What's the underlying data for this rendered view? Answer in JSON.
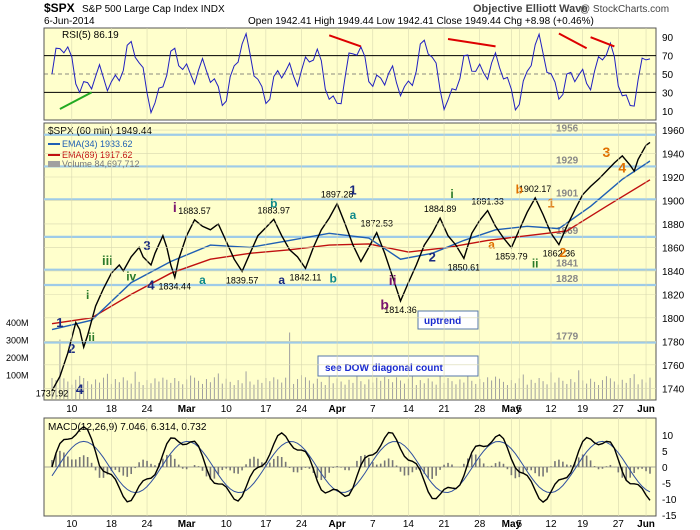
{
  "header": {
    "symbol": "$SPX",
    "name": "S&P 500 Large Cap Index INDX",
    "date": "6-Jun-2014",
    "author": "Objective Elliott Wave",
    "copyright": "@ StockCharts.com",
    "ohlc": "Open 1942.41  High 1949.44  Low 1942.41  Close 1949.44  Chg +8.98 (+0.46%)"
  },
  "colors": {
    "panel_bg": "#ffffcc",
    "price": "#000000",
    "ema34": "#1f5fb4",
    "ema89": "#c01010",
    "volume": "#a0a0a0",
    "rsi": "#2020c0",
    "level_line": "#9ecbe8",
    "wave_navy": "#1a2a80",
    "wave_teal": "#0e8a8a",
    "wave_purple": "#7a1470",
    "wave_orange": "#e07000",
    "wave_green": "#2a7a2a",
    "trend_red": "#dd0000",
    "trend_green": "#22aa22",
    "ann_box_text": "#1a2ad0"
  },
  "legend": {
    "price": "$SPX (60 min) 1949.44",
    "ema34": "EMA(34) 1933.62",
    "ema89": "EMA(89) 1917.62",
    "volume": "Volume 84,697,712"
  },
  "rsi_panel": {
    "label": "RSI(5) 86.19",
    "ticks": [
      90,
      70,
      50,
      30,
      10
    ],
    "bands": [
      70,
      30
    ]
  },
  "macd_panel": {
    "label": "MACD(12,26,9) 7.046, 6.314, 0.732",
    "ticks": [
      10,
      5,
      0,
      -5,
      -10,
      -15
    ]
  },
  "annotations": {
    "uptrend": "uptrend",
    "dow_note": "see DOW diagonal count"
  },
  "chart_data": {
    "type": "line",
    "x_tick_labels": [
      "10",
      "18",
      "24",
      "Mar",
      "10",
      "17",
      "24",
      "Apr",
      "7",
      "14",
      "21",
      "28",
      "May",
      "5",
      "12",
      "19",
      "27",
      "Jun"
    ],
    "y_ticks": [
      1740,
      1760,
      1780,
      1800,
      1820,
      1840,
      1860,
      1880,
      1900,
      1920,
      1940,
      1960
    ],
    "ylim": [
      1730,
      1966
    ],
    "volume_ticks": [
      "400M",
      "300M",
      "200M",
      "100M"
    ],
    "levels": [
      1956,
      1929,
      1901,
      1869,
      1841,
      1828,
      1779
    ],
    "price_path": [
      [
        0,
        1737.92
      ],
      [
        2,
        1750
      ],
      [
        4,
        1770
      ],
      [
        6,
        1796
      ],
      [
        7,
        1790
      ],
      [
        8,
        1775
      ],
      [
        9,
        1785
      ],
      [
        11,
        1810
      ],
      [
        13,
        1825
      ],
      [
        15,
        1838
      ],
      [
        17,
        1845
      ],
      [
        18,
        1840
      ],
      [
        20,
        1852
      ],
      [
        22,
        1860
      ],
      [
        23,
        1852
      ],
      [
        25,
        1845
      ],
      [
        26,
        1855
      ],
      [
        28,
        1870
      ],
      [
        29,
        1860
      ],
      [
        30,
        1845
      ],
      [
        31,
        1834.44
      ],
      [
        32,
        1850
      ],
      [
        34,
        1870
      ],
      [
        36,
        1883.57
      ],
      [
        38,
        1878
      ],
      [
        40,
        1875
      ],
      [
        42,
        1880
      ],
      [
        44,
        1865
      ],
      [
        46,
        1850
      ],
      [
        48,
        1839.57
      ],
      [
        50,
        1855
      ],
      [
        52,
        1870
      ],
      [
        54,
        1877
      ],
      [
        56,
        1883.97
      ],
      [
        58,
        1870
      ],
      [
        60,
        1858
      ],
      [
        62,
        1852
      ],
      [
        64,
        1842.11
      ],
      [
        66,
        1860
      ],
      [
        68,
        1875
      ],
      [
        70,
        1885
      ],
      [
        72,
        1897.28
      ],
      [
        74,
        1880
      ],
      [
        76,
        1862
      ],
      [
        78,
        1848
      ],
      [
        80,
        1860
      ],
      [
        82,
        1872.53
      ],
      [
        84,
        1855
      ],
      [
        86,
        1835
      ],
      [
        88,
        1814.36
      ],
      [
        90,
        1830
      ],
      [
        92,
        1845
      ],
      [
        94,
        1862
      ],
      [
        96,
        1872
      ],
      [
        98,
        1884.89
      ],
      [
        100,
        1870
      ],
      [
        102,
        1862
      ],
      [
        104,
        1850.61
      ],
      [
        106,
        1872
      ],
      [
        108,
        1883
      ],
      [
        110,
        1891.33
      ],
      [
        112,
        1878
      ],
      [
        114,
        1868
      ],
      [
        116,
        1859.79
      ],
      [
        118,
        1875
      ],
      [
        120,
        1890
      ],
      [
        122,
        1902.17
      ],
      [
        124,
        1888
      ],
      [
        126,
        1872
      ],
      [
        128,
        1862.36
      ],
      [
        130,
        1878
      ],
      [
        132,
        1892
      ],
      [
        134,
        1905
      ],
      [
        136,
        1912
      ],
      [
        138,
        1918
      ],
      [
        140,
        1925
      ],
      [
        142,
        1932
      ],
      [
        144,
        1938
      ],
      [
        146,
        1930
      ],
      [
        147,
        1925
      ],
      [
        148,
        1935
      ],
      [
        150,
        1947
      ],
      [
        151,
        1949.44
      ]
    ],
    "ema34_path": [
      [
        0,
        1790
      ],
      [
        10,
        1798
      ],
      [
        20,
        1830
      ],
      [
        30,
        1848
      ],
      [
        40,
        1862
      ],
      [
        50,
        1860
      ],
      [
        60,
        1866
      ],
      [
        70,
        1872
      ],
      [
        80,
        1868
      ],
      [
        88,
        1850
      ],
      [
        96,
        1855
      ],
      [
        104,
        1866
      ],
      [
        112,
        1875
      ],
      [
        120,
        1878
      ],
      [
        128,
        1876
      ],
      [
        136,
        1895
      ],
      [
        144,
        1918
      ],
      [
        151,
        1933.62
      ]
    ],
    "ema89_path": [
      [
        0,
        1795
      ],
      [
        10,
        1800
      ],
      [
        20,
        1820
      ],
      [
        30,
        1838
      ],
      [
        40,
        1850
      ],
      [
        50,
        1855
      ],
      [
        60,
        1858
      ],
      [
        70,
        1862
      ],
      [
        80,
        1863
      ],
      [
        90,
        1856
      ],
      [
        100,
        1860
      ],
      [
        110,
        1866
      ],
      [
        120,
        1870
      ],
      [
        130,
        1874
      ],
      [
        140,
        1895
      ],
      [
        151,
        1917.62
      ]
    ],
    "price_labels": [
      "1737.92",
      "1834.44",
      "1883.57",
      "1839.57",
      "1883.97",
      "1842.11",
      "1897.28",
      "1872.53",
      "1814.36",
      "1884.89",
      "1850.61",
      "1891.33",
      "1859.79",
      "1902.17",
      "1862.36"
    ],
    "wave_labels": [
      "1",
      "2",
      "i",
      "ii",
      "iii",
      "iv",
      "3",
      "4",
      "i",
      "a",
      "b",
      "a",
      "b",
      "a",
      "b",
      "ii",
      "1",
      "2",
      "i",
      "a",
      "b",
      "ii",
      "1",
      "2",
      "3",
      "4",
      "4"
    ]
  }
}
